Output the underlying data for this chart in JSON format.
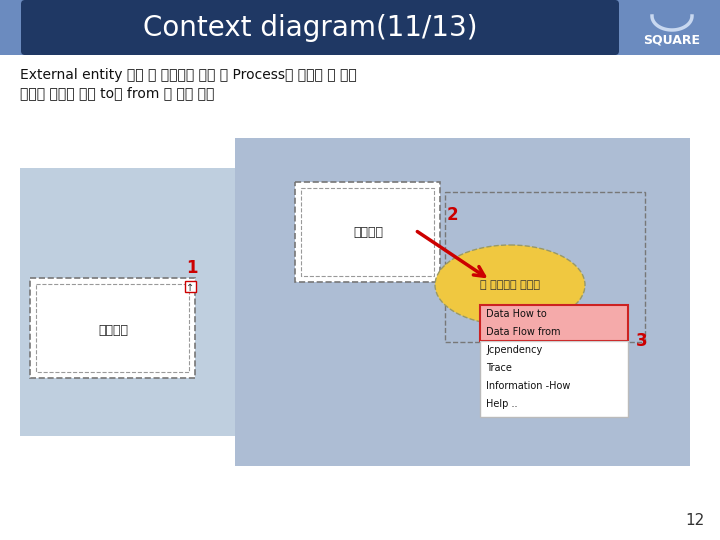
{
  "title": "Context diagram(11/13)",
  "title_bg": "#1f3864",
  "title_text_color": "#ffffff",
  "square_text": "SQUARE",
  "square_bg": "#6080b8",
  "slide_bg": "#ffffff",
  "body_text_line1": "External entity 클릭 후 화살표를 누른 쇼 Process로 드래그 앤 드랍",
  "body_text_line2": "데이터 흐름에 따라 to와 from 중 하나 선택",
  "content_bg": "#adbdd4",
  "left_sub_bg": "#bfcfdf",
  "right_sub_bg": "#b8c8d8",
  "num_color": "#cc0000",
  "arrow_color": "#cc0000",
  "entity_label": "온도센서",
  "process_label": "집 통함관리 시스템",
  "menu_items": [
    "Data How to",
    "Data Flow from",
    "Jcpendency",
    "Trace",
    "Information -How",
    "Help .."
  ],
  "menu_highlight_color": "#f5aaaa",
  "menu_border_color": "#cc2222",
  "page_number": "12"
}
